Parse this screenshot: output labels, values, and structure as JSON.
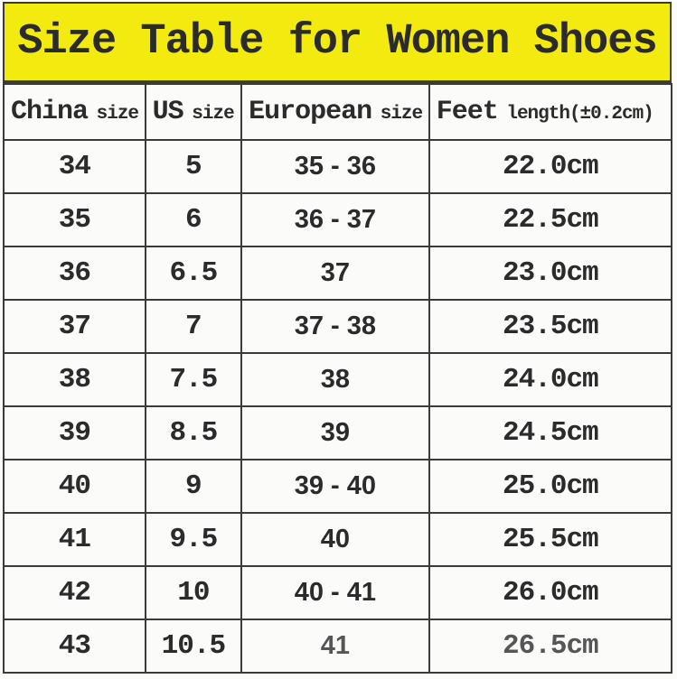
{
  "title": "Size Table for Women Shoes",
  "colors": {
    "banner_bg": "#f3eb10",
    "grid_line": "#3b3b3b",
    "text": "#2b2b2b"
  },
  "table": {
    "columns": [
      {
        "main": "China",
        "suffix": "size"
      },
      {
        "main": "US",
        "suffix": "size"
      },
      {
        "main": "European",
        "suffix": "size"
      },
      {
        "main": "Feet",
        "suffix": "length(±0.2cm)"
      }
    ],
    "rows": [
      {
        "china": "34",
        "us": "5",
        "eu": "35 - 36",
        "feet": "22.0cm"
      },
      {
        "china": "35",
        "us": "6",
        "eu": "36 - 37",
        "feet": "22.5cm"
      },
      {
        "china": "36",
        "us": "6.5",
        "eu": "37",
        "feet": "23.0cm"
      },
      {
        "china": "37",
        "us": "7",
        "eu": "37 - 38",
        "feet": "23.5cm"
      },
      {
        "china": "38",
        "us": "7.5",
        "eu": "38",
        "feet": "24.0cm"
      },
      {
        "china": "39",
        "us": "8.5",
        "eu": "39",
        "feet": "24.5cm"
      },
      {
        "china": "40",
        "us": "9",
        "eu": "39 - 40",
        "feet": "25.0cm"
      },
      {
        "china": "41",
        "us": "9.5",
        "eu": "40",
        "feet": "25.5cm"
      },
      {
        "china": "42",
        "us": "10",
        "eu": "40 - 41",
        "feet": "26.0cm"
      },
      {
        "china": "43",
        "us": "10.5",
        "eu": "41",
        "feet": "26.5cm"
      }
    ]
  }
}
